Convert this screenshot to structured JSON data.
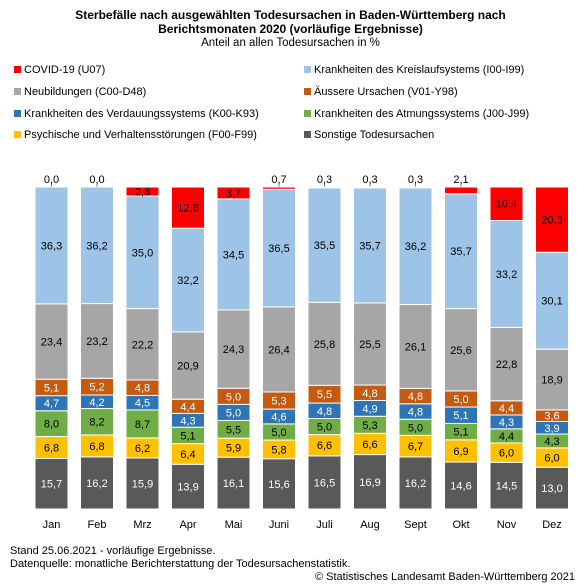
{
  "chart_data": {
    "type": "bar",
    "stacked": true,
    "title_line1": "Sterbefälle nach ausgewählten Todesursachen in Baden-Württemberg nach",
    "title_line2": "Berichtsmonaten 2020 (vorläufige Ergebnisse)",
    "subtitle": "Anteil an allen Todesursachen in %",
    "categories": [
      "Jan",
      "Feb",
      "Mrz",
      "Apr",
      "Mai",
      "Juni",
      "Juli",
      "Aug",
      "Sept",
      "Okt",
      "Nov",
      "Dez"
    ],
    "ylim": [
      0,
      100
    ],
    "grid": false,
    "legend_position": "top",
    "series": [
      {
        "name": "Sonstige Todesursachen",
        "color": "#595959",
        "label_color": "#ffffff",
        "values": [
          15.7,
          16.2,
          15.9,
          13.9,
          16.1,
          15.6,
          16.5,
          16.9,
          16.2,
          14.6,
          14.5,
          13.0
        ]
      },
      {
        "name": "Psychische und Verhaltensstörungen (F00-F99)",
        "color": "#ffc000",
        "label_color": "#000000",
        "values": [
          6.8,
          6.8,
          6.2,
          6.4,
          5.9,
          5.8,
          6.6,
          6.6,
          6.7,
          6.9,
          6.0,
          6.0
        ]
      },
      {
        "name": "Krankheiten des Atmungssystems (J00-J99)",
        "color": "#70ad47",
        "label_color": "#000000",
        "values": [
          8.0,
          8.2,
          8.7,
          5.1,
          5.5,
          5.0,
          5.0,
          5.3,
          5.0,
          5.1,
          4.4,
          4.3
        ]
      },
      {
        "name": "Krankheiten des Verdauungssystems (K00-K93)",
        "color": "#2e75b6",
        "label_color": "#ffffff",
        "values": [
          4.7,
          4.2,
          4.5,
          4.3,
          5.0,
          4.6,
          4.8,
          4.9,
          4.8,
          5.1,
          4.3,
          3.9
        ]
      },
      {
        "name": "Äussere Ursachen (V01-Y98)",
        "color": "#c55a11",
        "label_color": "#ffffff",
        "values": [
          5.1,
          5.2,
          4.8,
          4.4,
          5.0,
          5.3,
          5.5,
          4.8,
          4.8,
          5.0,
          4.4,
          3.6
        ]
      },
      {
        "name": "Neubildungen (C00-D48)",
        "color": "#a6a6a6",
        "label_color": "#000000",
        "values": [
          23.4,
          23.2,
          22.2,
          20.9,
          24.3,
          26.4,
          25.8,
          25.5,
          26.1,
          25.6,
          22.8,
          18.9
        ]
      },
      {
        "name": "Krankheiten des Kreislaufsystems (I00-I99)",
        "color": "#9dc3e6",
        "label_color": "#000000",
        "values": [
          36.3,
          36.2,
          35.0,
          32.2,
          34.5,
          36.5,
          35.5,
          35.7,
          36.2,
          35.7,
          33.2,
          30.1
        ]
      },
      {
        "name": "COVID-19 (U07)",
        "color": "#ff0000",
        "label_color": "#000000",
        "values": [
          0.0,
          0.0,
          2.8,
          12.8,
          3.7,
          0.7,
          0.3,
          0.3,
          0.3,
          2.1,
          10.4,
          20.3
        ]
      }
    ]
  },
  "legend": [
    {
      "label": "COVID-19 (U07)",
      "color": "#ff0000"
    },
    {
      "label": "Krankheiten des Kreislaufsystems (I00-I99)",
      "color": "#9dc3e6"
    },
    {
      "label": "Neubildungen (C00-D48)",
      "color": "#a6a6a6"
    },
    {
      "label": "Äussere Ursachen (V01-Y98)",
      "color": "#c55a11"
    },
    {
      "label": "Krankheiten des Verdauungssystems (K00-K93)",
      "color": "#2e75b6"
    },
    {
      "label": "Krankheiten des Atmungssystems (J00-J99)",
      "color": "#70ad47"
    },
    {
      "label": "Psychische und Verhaltensstörungen (F00-F99)",
      "color": "#ffc000"
    },
    {
      "label": "Sonstige Todesursachen",
      "color": "#595959"
    }
  ],
  "footer": {
    "line1": "Stand 25.06.2021 - vorläufige Ergebnisse.",
    "line2": "Datenquelle: monatliche Berichterstattung der Todesursachenstatistik.",
    "copyright": "© Statistisches Landesamt Baden-Württemberg 2021"
  }
}
